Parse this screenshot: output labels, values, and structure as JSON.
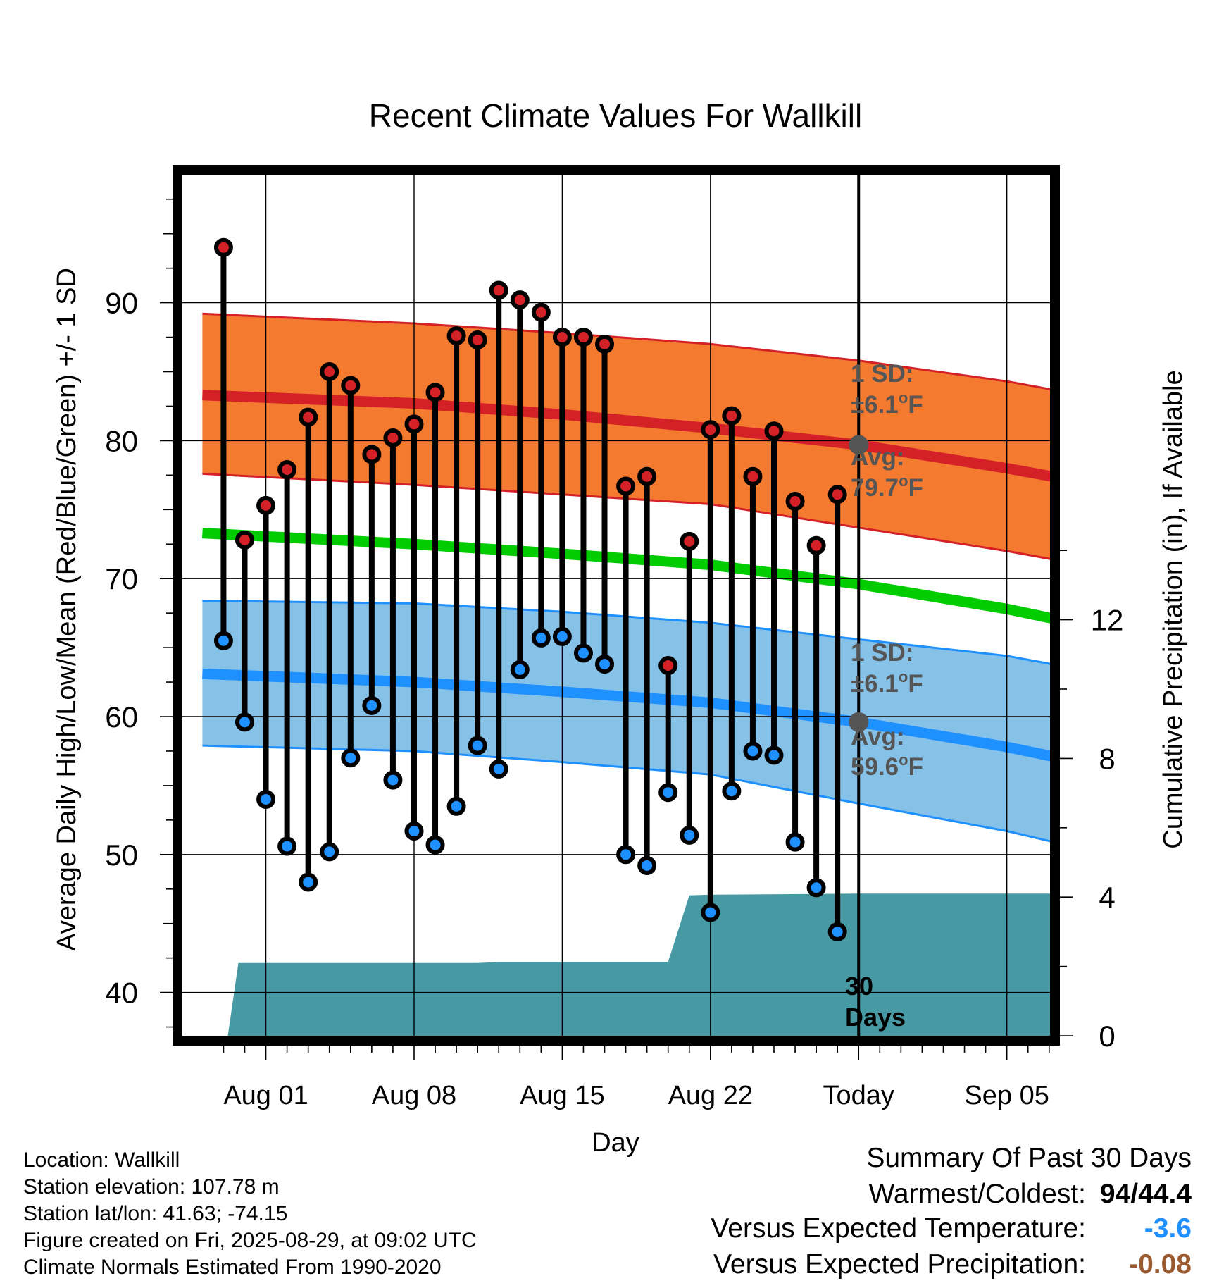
{
  "chart_data": {
    "type": "line",
    "title": "Recent Climate Values For Wallkill",
    "xlabel": "Day",
    "ylabel": "Average Daily High/Low/Mean (Red/Blue/Green) +/- 1 SD",
    "y2label": "Cumulative Precipitation (in), If Available",
    "ylim": [
      35.5,
      98.5
    ],
    "y2lim": [
      0,
      23.3
    ],
    "yticks": [
      40,
      50,
      60,
      70,
      80,
      90
    ],
    "y2ticks": [
      0,
      4,
      8,
      12
    ],
    "xticks": [
      {
        "day": 1,
        "label": "Aug 01"
      },
      {
        "day": 8,
        "label": "Aug 08"
      },
      {
        "day": 15,
        "label": "Aug 15"
      },
      {
        "day": 22,
        "label": "Aug 22"
      },
      {
        "day": 29,
        "label": "Today"
      },
      {
        "day": 36,
        "label": "Sep 05"
      }
    ],
    "xlim": [
      -2.0,
      38.8
    ],
    "grid": true,
    "colors": {
      "high_sd_band": "#f47a30",
      "high_mean": "#d42027",
      "mean_line": "#00cc00",
      "low_sd_band": "#86c1e8",
      "low_mean": "#1e90ff",
      "precip_fill": "#479aa4",
      "high_marker": "#d42027",
      "low_marker": "#1e90ff",
      "avg_marker": "#555555",
      "annotation_text": "#555555"
    },
    "normal_high": {
      "x": [
        -2,
        8,
        15,
        22,
        29,
        36,
        38.5
      ],
      "mean": [
        83.3,
        82.7,
        81.9,
        80.9,
        79.7,
        78.0,
        77.3
      ],
      "upper": [
        89.2,
        88.5,
        87.8,
        87.0,
        85.8,
        84.3,
        83.6
      ],
      "lower": [
        77.6,
        76.8,
        76.1,
        75.4,
        73.7,
        72.0,
        71.3
      ]
    },
    "normal_mean": {
      "x": [
        -2,
        8,
        15,
        22,
        29,
        36,
        38.5
      ],
      "values": [
        73.3,
        72.5,
        71.8,
        71.0,
        69.6,
        67.8,
        67.0
      ]
    },
    "normal_low": {
      "x": [
        -2,
        8,
        15,
        22,
        29,
        36,
        38.5
      ],
      "mean": [
        63.1,
        62.5,
        61.8,
        61.0,
        59.6,
        57.8,
        57.0
      ],
      "upper": [
        68.4,
        68.2,
        67.6,
        66.8,
        65.6,
        64.4,
        63.7
      ],
      "lower": [
        57.9,
        57.5,
        56.7,
        55.8,
        53.7,
        51.7,
        50.8
      ]
    },
    "observed": {
      "days": [
        -1,
        0,
        1,
        2,
        3,
        4,
        5,
        6,
        7,
        8,
        9,
        10,
        11,
        12,
        13,
        14,
        15,
        16,
        17,
        18,
        19,
        20,
        21,
        22,
        23,
        24,
        25,
        26,
        27,
        28
      ],
      "high": [
        94.0,
        72.8,
        75.3,
        77.9,
        81.7,
        85.0,
        84.0,
        79.0,
        80.2,
        81.2,
        83.5,
        87.6,
        87.3,
        90.9,
        90.2,
        89.3,
        87.5,
        87.5,
        87.0,
        76.7,
        77.4,
        63.7,
        72.7,
        80.8,
        81.8,
        77.4,
        80.7,
        75.6,
        72.4,
        76.1
      ],
      "low": [
        65.5,
        59.6,
        54.0,
        50.6,
        48.0,
        50.2,
        57.0,
        60.8,
        55.4,
        51.7,
        50.7,
        53.5,
        57.9,
        56.2,
        63.4,
        65.7,
        65.8,
        64.6,
        63.8,
        50.0,
        49.2,
        54.5,
        51.4,
        45.8,
        54.6,
        57.5,
        57.2,
        50.9,
        47.6,
        44.4
      ]
    },
    "precip": {
      "x": [
        -0.8,
        -0.3,
        0.2,
        4.0,
        11.0,
        12.0,
        15.0,
        20.0,
        21.0,
        22.0,
        29.0,
        38.8
      ],
      "values": [
        0,
        2.1,
        2.1,
        2.1,
        2.1,
        2.13,
        2.13,
        2.13,
        4.05,
        4.07,
        4.1,
        4.1
      ]
    },
    "annotations": {
      "high_sd_label": "1 SD:",
      "high_sd_value": "±6.1",
      "high_avg_label": "Avg:",
      "high_avg_value": "79.7",
      "low_sd_label": "1 SD:",
      "low_sd_value": "±6.1",
      "low_avg_label": "Avg:",
      "low_avg_value": "59.6",
      "degree_sup": "o",
      "unit": "F",
      "days_count": "30",
      "days_word": "Days"
    }
  },
  "footer": {
    "location": "Location: Wallkill",
    "elevation": "Station elevation: 107.78 m",
    "latlon": "Station lat/lon: 41.63; -74.15",
    "created": "Figure created on Fri, 2025-08-29, at 09:02 UTC",
    "normals": "Climate Normals Estimated From 1990-2020"
  },
  "summary": {
    "title": "Summary Of Past 30 Days",
    "warmest_coldest_label": "Warmest/Coldest:",
    "warmest_coldest_value": "94/44.4",
    "temp_label": "Versus Expected Temperature:",
    "temp_value": "-3.6",
    "temp_color": "#1e90ff",
    "precip_label": "Versus Expected Precipitation:",
    "precip_value": "-0.08",
    "precip_color": "#9b5a2f"
  }
}
